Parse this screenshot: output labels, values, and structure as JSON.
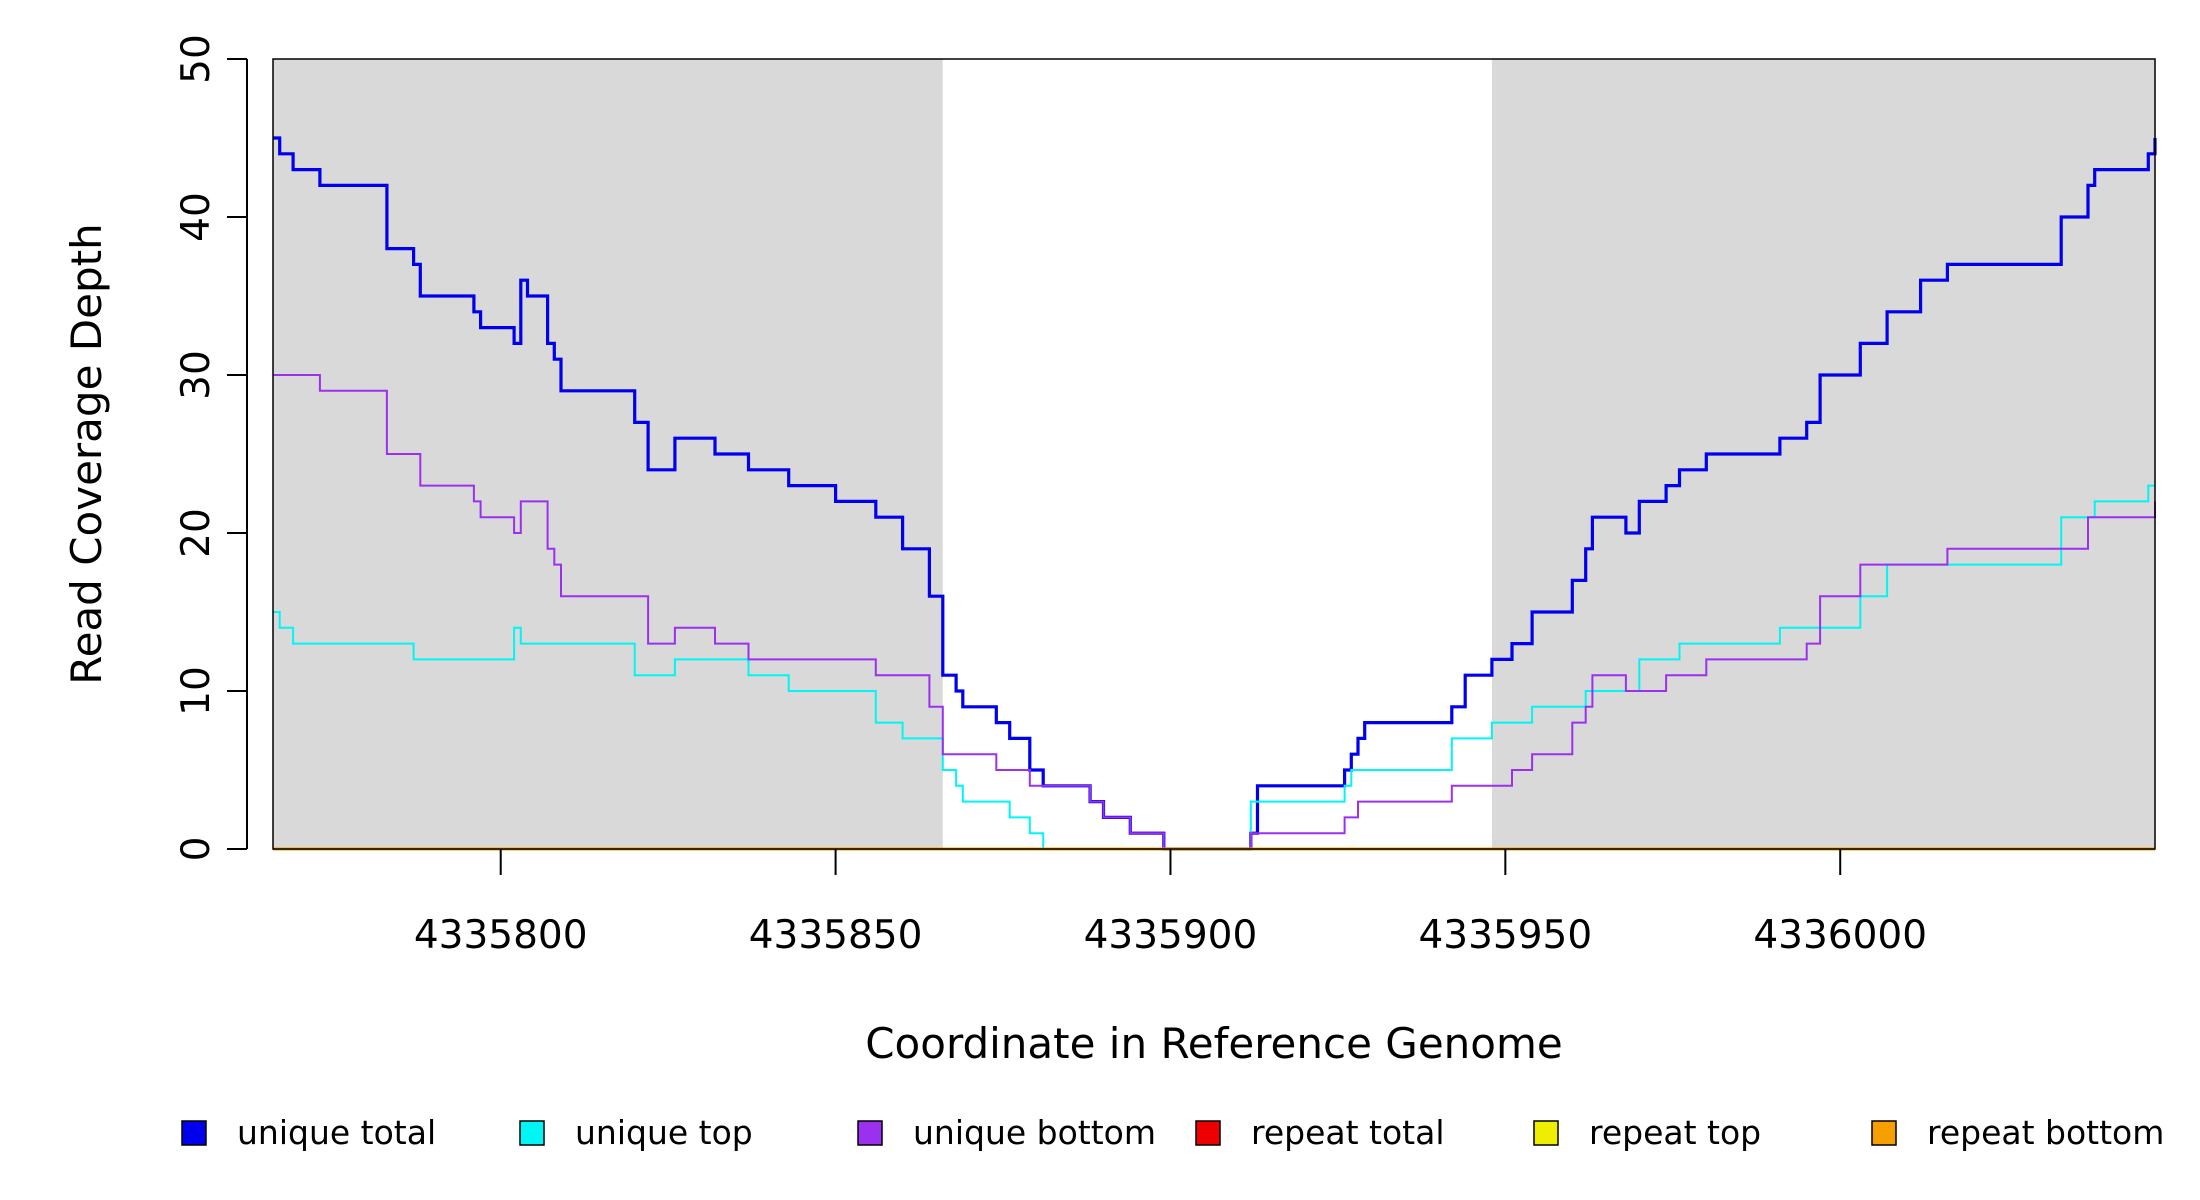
{
  "chart_data": {
    "type": "line",
    "title": "",
    "xlabel": "Coordinate in Reference Genome",
    "ylabel": "Read Coverage Depth",
    "xlim": [
      4335766,
      4336047
    ],
    "ylim": [
      0,
      50
    ],
    "x_ticks": [
      4335800,
      4335850,
      4335900,
      4335950,
      4336000
    ],
    "x_tick_labels": [
      "4335800",
      "4335850",
      "4335900",
      "4335950",
      "4336000"
    ],
    "y_ticks": [
      0,
      10,
      20,
      30,
      40,
      50
    ],
    "y_tick_labels": [
      "0",
      "10",
      "20",
      "30",
      "40",
      "50"
    ],
    "grid": false,
    "legend_position": "bottom",
    "shaded_regions": [
      {
        "x0": 4335766,
        "x1": 4335866,
        "color": "#d9d9d9"
      },
      {
        "x0": 4335948,
        "x1": 4336047,
        "color": "#d9d9d9"
      }
    ],
    "series": [
      {
        "name": "unique total",
        "color": "#0000ee",
        "width": 3.2,
        "points": [
          [
            4335766,
            45
          ],
          [
            4335767,
            44
          ],
          [
            4335769,
            43
          ],
          [
            4335773,
            42
          ],
          [
            4335783,
            38
          ],
          [
            4335787,
            37
          ],
          [
            4335788,
            35
          ],
          [
            4335796,
            34
          ],
          [
            4335797,
            33
          ],
          [
            4335802,
            32
          ],
          [
            4335803,
            36
          ],
          [
            4335804,
            35
          ],
          [
            4335807,
            32
          ],
          [
            4335808,
            31
          ],
          [
            4335809,
            29
          ],
          [
            4335820,
            27
          ],
          [
            4335822,
            24
          ],
          [
            4335826,
            26
          ],
          [
            4335832,
            25
          ],
          [
            4335837,
            24
          ],
          [
            4335843,
            23
          ],
          [
            4335850,
            22
          ],
          [
            4335856,
            21
          ],
          [
            4335860,
            19
          ],
          [
            4335864,
            16
          ],
          [
            4335866,
            11
          ],
          [
            4335868,
            10
          ],
          [
            4335869,
            9
          ],
          [
            4335874,
            8
          ],
          [
            4335876,
            7
          ],
          [
            4335879,
            5
          ],
          [
            4335881,
            4
          ],
          [
            4335888,
            3
          ],
          [
            4335890,
            2
          ],
          [
            4335894,
            1
          ],
          [
            4335899,
            0
          ],
          [
            4335912,
            1
          ],
          [
            4335913,
            4
          ],
          [
            4335926,
            5
          ],
          [
            4335927,
            6
          ],
          [
            4335928,
            7
          ],
          [
            4335929,
            8
          ],
          [
            4335942,
            9
          ],
          [
            4335944,
            11
          ],
          [
            4335948,
            12
          ],
          [
            4335951,
            13
          ],
          [
            4335954,
            15
          ],
          [
            4335960,
            17
          ],
          [
            4335962,
            19
          ],
          [
            4335963,
            21
          ],
          [
            4335968,
            20
          ],
          [
            4335970,
            22
          ],
          [
            4335974,
            23
          ],
          [
            4335976,
            24
          ],
          [
            4335980,
            25
          ],
          [
            4335991,
            26
          ],
          [
            4335995,
            27
          ],
          [
            4335997,
            30
          ],
          [
            4336003,
            32
          ],
          [
            4336007,
            34
          ],
          [
            4336012,
            36
          ],
          [
            4336016,
            37
          ],
          [
            4336033,
            40
          ],
          [
            4336037,
            42
          ],
          [
            4336038,
            43
          ],
          [
            4336046,
            44
          ],
          [
            4336047,
            45
          ]
        ]
      },
      {
        "name": "unique top",
        "color": "#00f5f5",
        "width": 2,
        "points": [
          [
            4335766,
            15
          ],
          [
            4335767,
            14
          ],
          [
            4335769,
            13
          ],
          [
            4335787,
            12
          ],
          [
            4335802,
            14
          ],
          [
            4335803,
            13
          ],
          [
            4335820,
            11
          ],
          [
            4335826,
            12
          ],
          [
            4335837,
            11
          ],
          [
            4335843,
            10
          ],
          [
            4335856,
            8
          ],
          [
            4335860,
            7
          ],
          [
            4335866,
            5
          ],
          [
            4335868,
            4
          ],
          [
            4335869,
            3
          ],
          [
            4335876,
            2
          ],
          [
            4335879,
            1
          ],
          [
            4335881,
            0
          ],
          [
            4335912,
            3
          ],
          [
            4335926,
            4
          ],
          [
            4335927,
            5
          ],
          [
            4335942,
            7
          ],
          [
            4335948,
            8
          ],
          [
            4335954,
            9
          ],
          [
            4335962,
            10
          ],
          [
            4335970,
            12
          ],
          [
            4335976,
            13
          ],
          [
            4335991,
            14
          ],
          [
            4336003,
            16
          ],
          [
            4336007,
            18
          ],
          [
            4336033,
            21
          ],
          [
            4336038,
            22
          ],
          [
            4336046,
            23
          ]
        ]
      },
      {
        "name": "unique bottom",
        "color": "#9b30ee",
        "width": 2,
        "points": [
          [
            4335766,
            30
          ],
          [
            4335773,
            29
          ],
          [
            4335783,
            25
          ],
          [
            4335788,
            23
          ],
          [
            4335796,
            22
          ],
          [
            4335797,
            21
          ],
          [
            4335802,
            20
          ],
          [
            4335803,
            22
          ],
          [
            4335807,
            19
          ],
          [
            4335808,
            18
          ],
          [
            4335809,
            16
          ],
          [
            4335822,
            13
          ],
          [
            4335826,
            14
          ],
          [
            4335832,
            13
          ],
          [
            4335837,
            12
          ],
          [
            4335856,
            11
          ],
          [
            4335864,
            9
          ],
          [
            4335866,
            6
          ],
          [
            4335874,
            5
          ],
          [
            4335879,
            4
          ],
          [
            4335888,
            3
          ],
          [
            4335890,
            2
          ],
          [
            4335894,
            1
          ],
          [
            4335899,
            0
          ],
          [
            4335912,
            1
          ],
          [
            4335926,
            2
          ],
          [
            4335928,
            3
          ],
          [
            4335942,
            4
          ],
          [
            4335951,
            5
          ],
          [
            4335954,
            6
          ],
          [
            4335960,
            8
          ],
          [
            4335962,
            9
          ],
          [
            4335963,
            11
          ],
          [
            4335968,
            10
          ],
          [
            4335974,
            11
          ],
          [
            4335980,
            12
          ],
          [
            4335995,
            13
          ],
          [
            4335997,
            16
          ],
          [
            4336003,
            18
          ],
          [
            4336016,
            19
          ],
          [
            4336037,
            21
          ],
          [
            4336047,
            22
          ]
        ]
      },
      {
        "name": "repeat total",
        "color": "#ee0000",
        "width": 2,
        "points": [
          [
            4335766,
            0
          ],
          [
            4336047,
            0
          ]
        ]
      },
      {
        "name": "repeat top",
        "color": "#eeee00",
        "width": 2,
        "points": [
          [
            4335766,
            0
          ],
          [
            4336047,
            0
          ]
        ]
      },
      {
        "name": "repeat bottom",
        "color": "#f5a000",
        "width": 3,
        "points": [
          [
            4335766,
            0
          ],
          [
            4336047,
            0
          ]
        ]
      }
    ],
    "legend": [
      {
        "label": "unique total",
        "color": "#0000ee"
      },
      {
        "label": "unique top",
        "color": "#00f5f5"
      },
      {
        "label": "unique bottom",
        "color": "#9b30ee"
      },
      {
        "label": "repeat total",
        "color": "#ee0000"
      },
      {
        "label": "repeat top",
        "color": "#eeee00"
      },
      {
        "label": "repeat bottom",
        "color": "#f5a000"
      }
    ]
  }
}
